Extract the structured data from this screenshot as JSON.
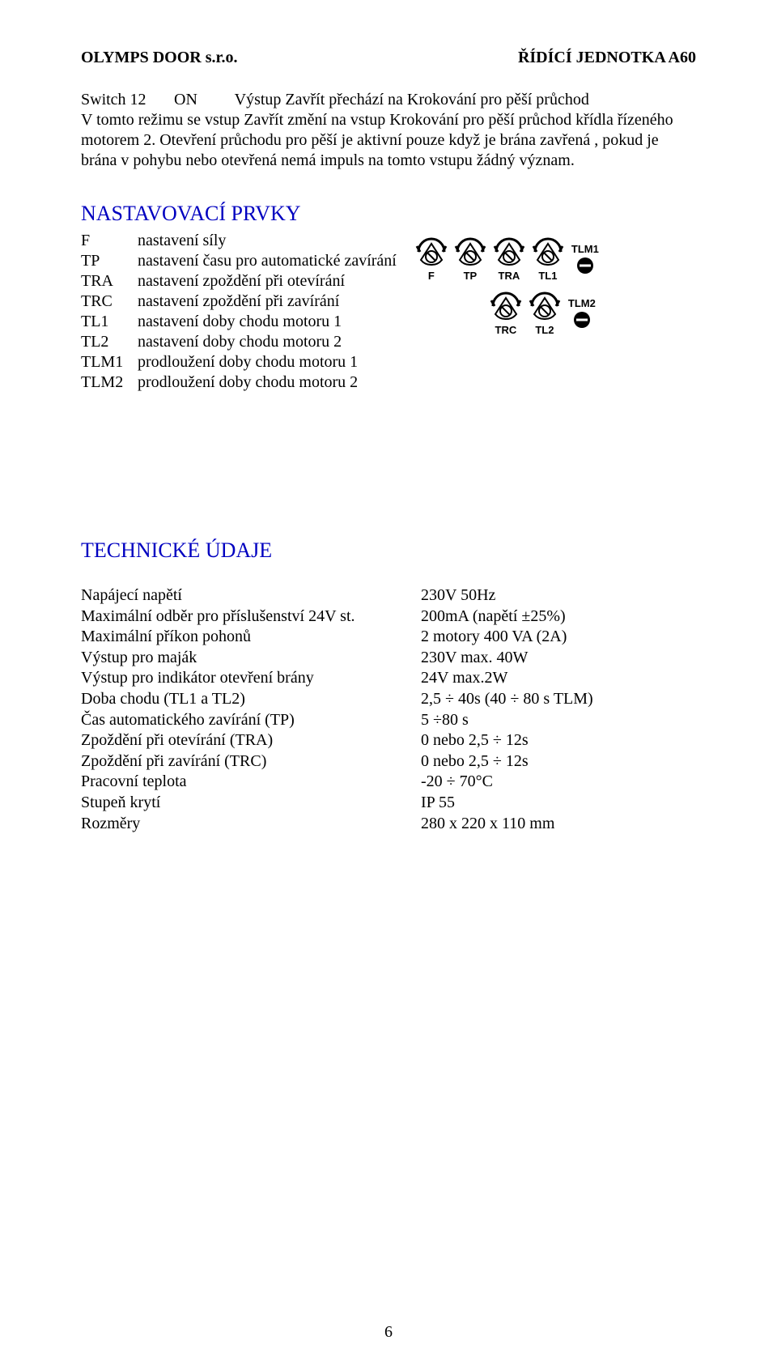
{
  "header": {
    "left": "OLYMPS DOOR s.r.o.",
    "right": "ŘÍDÍCÍ JEDNOTKA A60"
  },
  "switch_block": {
    "label": "Switch 12",
    "state": "ON",
    "desc": "Výstup Zavřít přechází na Krokování pro pěší průchod",
    "line2": "V tomto režimu se vstup Zavřít změní na vstup Krokování pro pěší průchod křídla řízeného motorem 2. Otevření průchodu pro pěší je aktivní pouze když je brána zavřená , pokud je brána v pohybu nebo otevřená nemá impuls na tomto vstupu žádný význam."
  },
  "prvky": {
    "heading": "NASTAVOVACÍ PRVKY",
    "items": [
      {
        "key": "F",
        "text": "nastavení síly"
      },
      {
        "key": "TP",
        "text": "nastavení času pro automatické zavírání"
      },
      {
        "key": "TRA",
        "text": "nastavení zpoždění při otevírání"
      },
      {
        "key": "TRC",
        "text": "nastavení zpoždění při zavírání"
      },
      {
        "key": "TL1",
        "text": "nastavení doby chodu motoru 1"
      },
      {
        "key": "TL2",
        "text": "nastavení doby chodu motoru 2"
      },
      {
        "key": "TLM1",
        "text": "prodloužení doby chodu motoru 1"
      },
      {
        "key": "TLM2",
        "text": "prodloužení doby chodu motoru 2"
      }
    ]
  },
  "dial_figure": {
    "stroke": "#000000",
    "fill": "#ffffff",
    "row1": {
      "dials": [
        "F",
        "TP",
        "TRA",
        "TL1"
      ],
      "tail_label": "TLM1"
    },
    "row2": {
      "dials": [
        "TRC",
        "TL2"
      ],
      "tail_label": "TLM2"
    }
  },
  "tech": {
    "heading": "TECHNICKÉ ÚDAJE",
    "rows": [
      {
        "label": "Napájecí napětí",
        "value": "230V 50Hz"
      },
      {
        "label": "Maximální odběr pro příslušenství 24V st.",
        "value": "200mA (napětí ±25%)"
      },
      {
        "label": "Maximální příkon pohonů",
        "value": "2 motory 400 VA (2A)"
      },
      {
        "label": "Výstup pro maják",
        "value": "230V max. 40W"
      },
      {
        "label": "Výstup pro indikátor otevření brány",
        "value": "24V max.2W"
      },
      {
        "label": "Doba chodu (TL1 a TL2)",
        "value": "2,5 ÷ 40s (40 ÷ 80 s TLM)"
      },
      {
        "label": "Čas automatického zavírání (TP)",
        "value": "5 ÷80 s"
      },
      {
        "label": "Zpoždění při otevírání (TRA)",
        "value": "0 nebo 2,5 ÷ 12s"
      },
      {
        "label": "Zpoždění při zavírání (TRC)",
        "value": "0 nebo 2,5 ÷ 12s"
      },
      {
        "label": "Pracovní teplota",
        "value": "-20 ÷ 70°C"
      },
      {
        "label": "Stupeň krytí",
        "value": "IP 55"
      },
      {
        "label": "Rozměry",
        "value": "280 x 220 x 110 mm"
      }
    ]
  },
  "page_number": "6"
}
